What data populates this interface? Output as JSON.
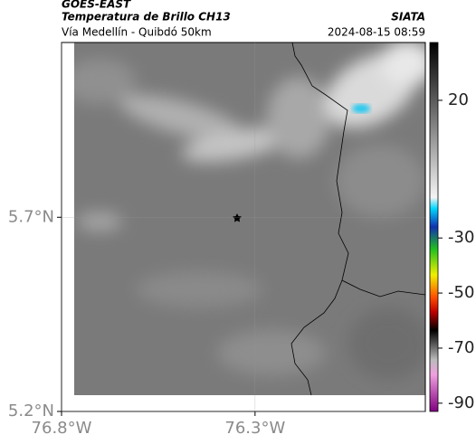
{
  "map": {
    "agency": "GOES-EAST",
    "title": "Temperatura de Brillo CH13",
    "source": "SIATA",
    "subtitle": "Vía Medellín - Quibdó 50km",
    "date": "2024-08-15 08:59",
    "xlim": [
      -76.8,
      -75.86
    ],
    "ylim": [
      5.2,
      6.15
    ],
    "xticks": [
      {
        "value": -76.8,
        "label": "76.8°W"
      },
      {
        "value": -76.3,
        "label": "76.3°W"
      }
    ],
    "yticks": [
      {
        "value": 5.2,
        "label": "5.2°N"
      },
      {
        "value": 5.7,
        "label": "5.7°N"
      }
    ],
    "colorbar": {
      "lim": [
        -93,
        41
      ],
      "ticks": [
        20,
        -30,
        -50,
        -70,
        -90
      ]
    }
  }
}
